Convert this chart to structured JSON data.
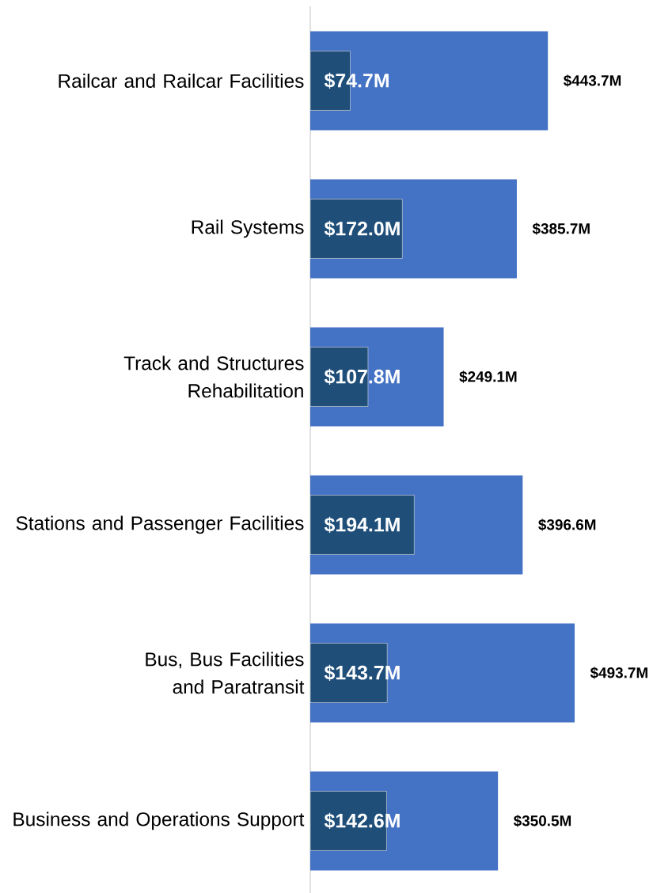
{
  "chart_data": {
    "type": "bar",
    "orientation": "horizontal",
    "categories": [
      "Railcar and Railcar Facilities",
      "Rail Systems",
      "Track and Structures Rehabilitation",
      "Stations and Passenger Facilities",
      "Bus, Bus Facilities and Paratransit",
      "Business and Operations Support"
    ],
    "series": [
      {
        "color": "#4472c4",
        "values": [
          443.7,
          385.7,
          249.1,
          396.6,
          493.7,
          350.5
        ],
        "value_labels": [
          "$443.7M",
          "$385.7M",
          "$249.1M",
          "$396.6M",
          "$493.7M",
          "$350.5M"
        ]
      },
      {
        "color": "#1f4e79",
        "values": [
          74.7,
          172.0,
          107.8,
          194.1,
          143.7,
          142.6
        ],
        "value_labels": [
          "$74.7M",
          "$172.0M",
          "$107.8M",
          "$194.1M",
          "$143.7M",
          "$142.6M"
        ]
      }
    ]
  }
}
